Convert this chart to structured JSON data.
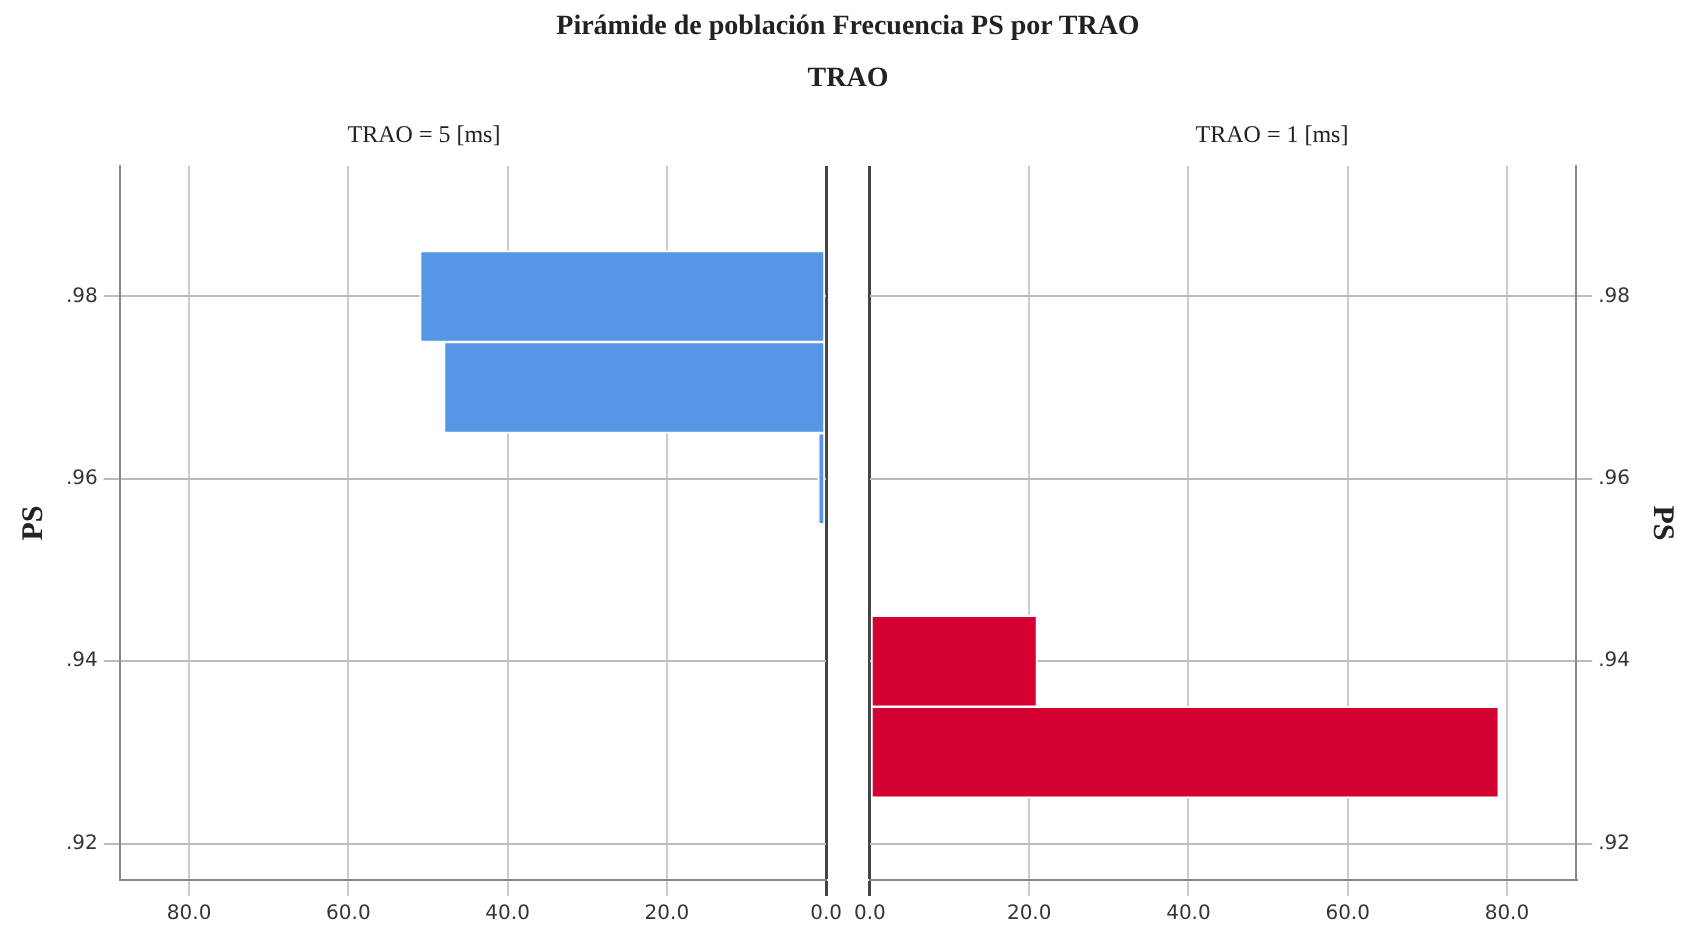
{
  "chart_data": [
    {
      "type": "histogram",
      "title": "Pirámide de población Frecuencia PS  por TRAO",
      "subtitle": "TRAO",
      "ylabel": "PS",
      "orientation": "horizontal",
      "bins": [
        0.925,
        0.935,
        0.945,
        0.955,
        0.965,
        0.975,
        0.985
      ],
      "series": [
        {
          "name": "TRAO = 5 [ms]",
          "color": "#5596e6",
          "values": [
            0,
            0,
            0,
            1,
            48,
            51
          ]
        }
      ],
      "xlim": [
        88.7,
        0
      ],
      "xticks": [
        {
          "value": 80,
          "label": "80.0"
        },
        {
          "value": 60,
          "label": "60.0"
        },
        {
          "value": 40,
          "label": "40.0"
        },
        {
          "value": 20,
          "label": "20.0"
        },
        {
          "value": 0,
          "label": "0.0"
        }
      ],
      "ylim": [
        0.916,
        0.9943
      ],
      "yticks": [
        {
          "value": 0.92,
          "label": ".92"
        },
        {
          "value": 0.94,
          "label": ".94"
        },
        {
          "value": 0.96,
          "label": ".96"
        },
        {
          "value": 0.98,
          "label": ".98"
        }
      ],
      "grid": true
    },
    {
      "type": "histogram",
      "ylabel": "PS",
      "orientation": "horizontal",
      "bins": [
        0.925,
        0.935,
        0.945,
        0.955,
        0.965,
        0.975,
        0.985
      ],
      "series": [
        {
          "name": "TRAO = 1 [ms]",
          "color": "#d50032",
          "values": [
            79,
            21,
            0,
            0,
            0,
            0
          ]
        }
      ],
      "xlim": [
        0,
        88.7
      ],
      "xticks": [
        {
          "value": 0,
          "label": "0.0"
        },
        {
          "value": 20,
          "label": "20.0"
        },
        {
          "value": 40,
          "label": "40.0"
        },
        {
          "value": 60,
          "label": "60.0"
        },
        {
          "value": 80,
          "label": "80.0"
        }
      ],
      "ylim": [
        0.916,
        0.9943
      ],
      "yticks": [
        {
          "value": 0.92,
          "label": ".92"
        },
        {
          "value": 0.94,
          "label": ".94"
        },
        {
          "value": 0.96,
          "label": ".96"
        },
        {
          "value": 0.98,
          "label": ".98"
        }
      ],
      "grid": true
    }
  ]
}
